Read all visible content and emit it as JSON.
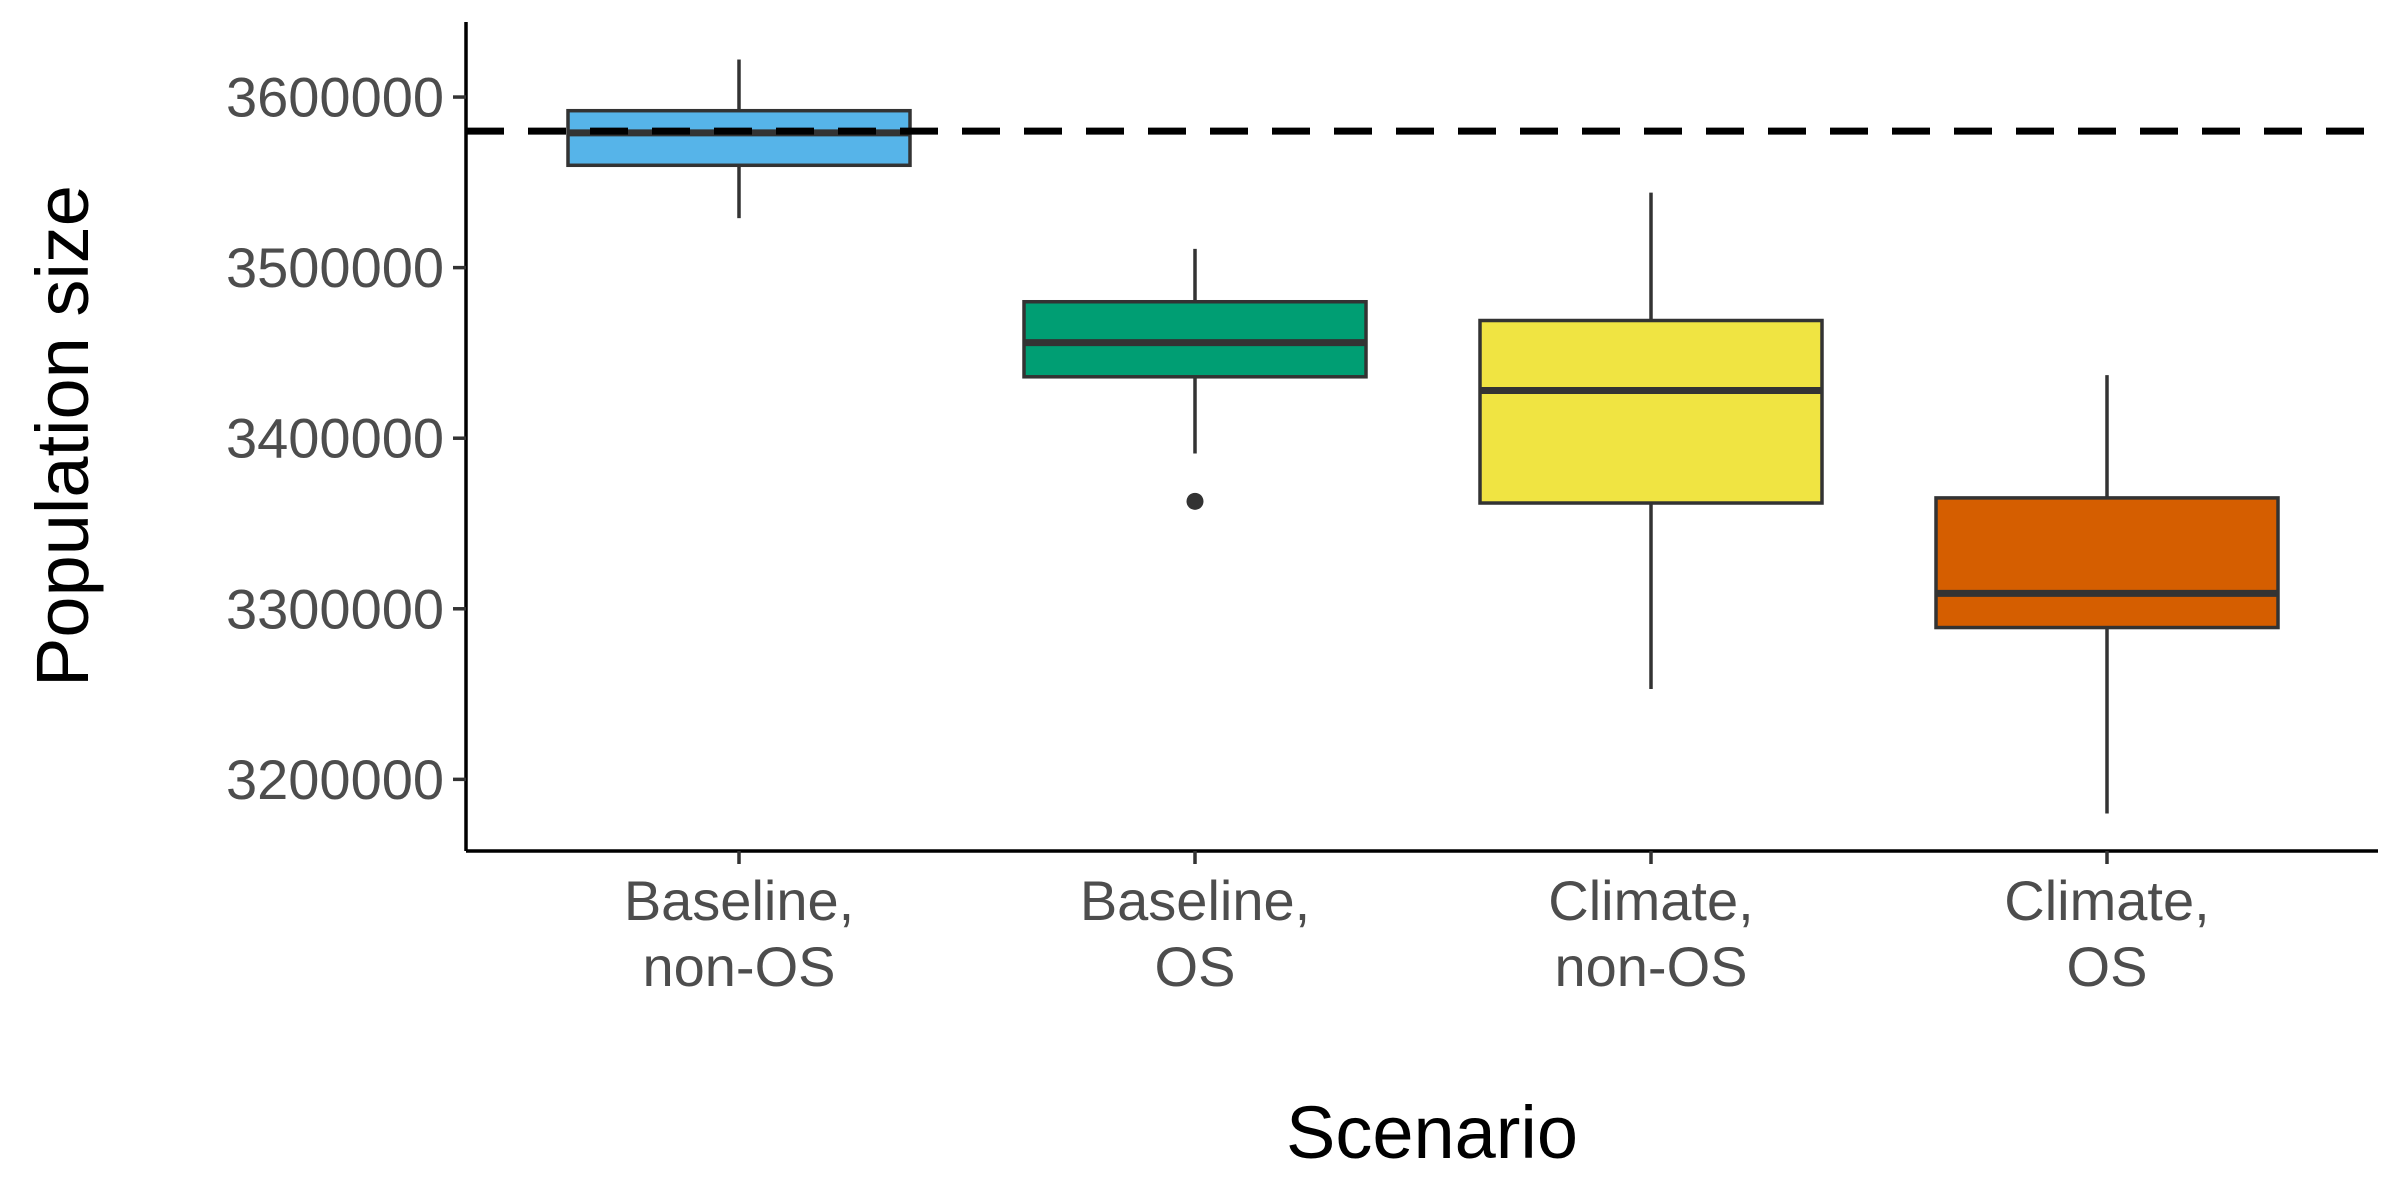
{
  "chart_data": {
    "type": "box",
    "title": "",
    "xlabel": "Scenario",
    "ylabel": "Population size",
    "ylim": [
      3158000,
      3644000
    ],
    "yticks": [
      3200000,
      3300000,
      3400000,
      3500000,
      3600000
    ],
    "ytick_labels": [
      "3200000",
      "3300000",
      "3400000",
      "3500000",
      "3600000"
    ],
    "grid": false,
    "legend": "none",
    "reference_line": {
      "y": 3580000,
      "style": "dashed",
      "color": "#000000"
    },
    "categories": [
      [
        "Baseline,",
        "non-OS"
      ],
      [
        "Baseline,",
        "OS"
      ],
      [
        "Climate,",
        "non-OS"
      ],
      [
        "Climate,",
        "OS"
      ]
    ],
    "boxes": [
      {
        "whisker_low": 3529000,
        "q1": 3560000,
        "median": 3579000,
        "q3": 3592000,
        "whisker_high": 3622000,
        "outliers": [],
        "color": "#56B4E9"
      },
      {
        "whisker_low": 3391000,
        "q1": 3436000,
        "median": 3456000,
        "q3": 3480000,
        "whisker_high": 3511000,
        "outliers": [
          3363000
        ],
        "color": "#009E73"
      },
      {
        "whisker_low": 3253000,
        "q1": 3362000,
        "median": 3428000,
        "q3": 3469000,
        "whisker_high": 3544000,
        "outliers": [],
        "color": "#F0E442"
      },
      {
        "whisker_low": 3180000,
        "q1": 3289000,
        "median": 3309000,
        "q3": 3365000,
        "whisker_high": 3437000,
        "outliers": [],
        "color": "#D55E00"
      }
    ]
  }
}
